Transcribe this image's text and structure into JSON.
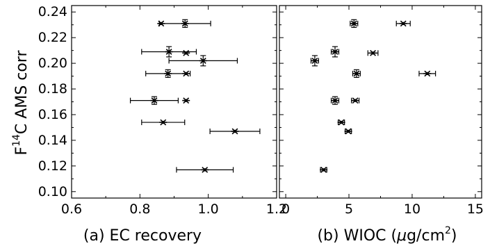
{
  "chart_data": [
    {
      "type": "scatter",
      "panel_label": "(a) EC recovery",
      "ylabel_prefix": "F",
      "ylabel_sup": "14",
      "ylabel_suffix": "C AMS corr",
      "xlim": [
        0.6,
        1.2
      ],
      "ylim": [
        0.095,
        0.245
      ],
      "xticks": [
        "0.6",
        "0.8",
        "1.0",
        "1.2"
      ],
      "xtick_values": [
        0.6,
        0.8,
        1.0,
        1.2
      ],
      "yticks": [
        "0.10",
        "0.12",
        "0.14",
        "0.16",
        "0.18",
        "0.20",
        "0.22",
        "0.24"
      ],
      "ytick_values": [
        0.1,
        0.12,
        0.14,
        0.16,
        0.18,
        0.2,
        0.22,
        0.24
      ],
      "grid": false,
      "points": [
        {
          "x": 0.862,
          "y": 0.231,
          "xerr": 0.0,
          "yerr": 0.0
        },
        {
          "x": 0.932,
          "y": 0.231,
          "xerr": 0.075,
          "yerr": 0.003
        },
        {
          "x": 0.885,
          "y": 0.209,
          "xerr": 0.08,
          "yerr": 0.004
        },
        {
          "x": 0.935,
          "y": 0.208,
          "xerr": 0.0,
          "yerr": 0.0
        },
        {
          "x": 0.985,
          "y": 0.202,
          "xerr": 0.1,
          "yerr": 0.004
        },
        {
          "x": 0.882,
          "y": 0.192,
          "xerr": 0.065,
          "yerr": 0.003
        },
        {
          "x": 0.935,
          "y": 0.192,
          "xerr": 0.0,
          "yerr": 0.0
        },
        {
          "x": 0.842,
          "y": 0.171,
          "xerr": 0.07,
          "yerr": 0.003
        },
        {
          "x": 0.935,
          "y": 0.171,
          "xerr": 0.0,
          "yerr": 0.0
        },
        {
          "x": 0.868,
          "y": 0.154,
          "xerr": 0.063,
          "yerr": 0.0
        },
        {
          "x": 1.078,
          "y": 0.147,
          "xerr": 0.073,
          "yerr": 0.0
        },
        {
          "x": 0.99,
          "y": 0.117,
          "xerr": 0.083,
          "yerr": 0.0
        }
      ]
    },
    {
      "type": "scatter",
      "panel_label_prefix": "(b) WIOC (",
      "panel_label_mu": "μ",
      "panel_label_mid": "g/cm",
      "panel_label_sup": "2",
      "panel_label_suffix": ")",
      "xlim": [
        -0.5,
        15.5
      ],
      "ylim": [
        0.095,
        0.245
      ],
      "xticks": [
        "0",
        "5",
        "10",
        "15"
      ],
      "xtick_values": [
        0,
        5,
        10,
        15
      ],
      "grid": false,
      "points": [
        {
          "x": 5.4,
          "y": 0.231,
          "xerr": 0.3,
          "yerr": 0.003
        },
        {
          "x": 9.3,
          "y": 0.231,
          "xerr": 0.55,
          "yerr": 0.0
        },
        {
          "x": 3.9,
          "y": 0.209,
          "xerr": 0.3,
          "yerr": 0.004
        },
        {
          "x": 6.9,
          "y": 0.208,
          "xerr": 0.4,
          "yerr": 0.0
        },
        {
          "x": 2.3,
          "y": 0.202,
          "xerr": 0.3,
          "yerr": 0.004
        },
        {
          "x": 5.6,
          "y": 0.192,
          "xerr": 0.3,
          "yerr": 0.003
        },
        {
          "x": 11.2,
          "y": 0.192,
          "xerr": 0.65,
          "yerr": 0.0
        },
        {
          "x": 3.9,
          "y": 0.171,
          "xerr": 0.3,
          "yerr": 0.003
        },
        {
          "x": 5.5,
          "y": 0.171,
          "xerr": 0.3,
          "yerr": 0.0
        },
        {
          "x": 4.4,
          "y": 0.154,
          "xerr": 0.25,
          "yerr": 0.0
        },
        {
          "x": 4.95,
          "y": 0.147,
          "xerr": 0.25,
          "yerr": 0.0
        },
        {
          "x": 3.0,
          "y": 0.117,
          "xerr": 0.25,
          "yerr": 0.0
        }
      ]
    }
  ]
}
